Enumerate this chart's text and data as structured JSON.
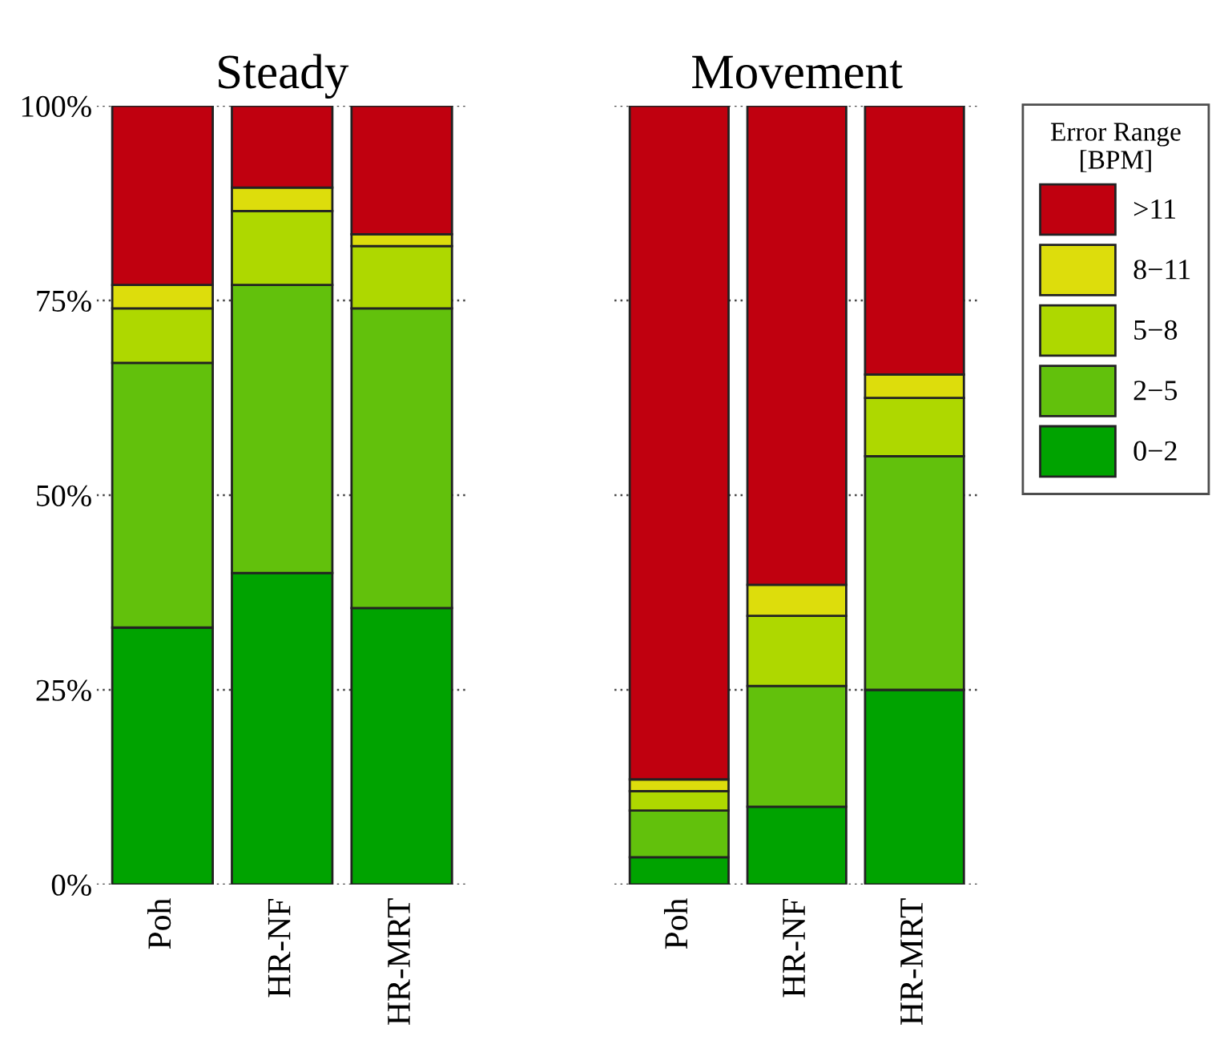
{
  "chart_data": [
    {
      "type": "bar",
      "title": "Steady",
      "stacked": true,
      "categories": [
        "Poh",
        "HR-NF",
        "HR-MRT"
      ],
      "ylim": [
        0,
        100
      ],
      "yticks": [
        {
          "value": 0,
          "label": "0%"
        },
        {
          "value": 25,
          "label": "25%"
        },
        {
          "value": 50,
          "label": "50%"
        },
        {
          "value": 75,
          "label": "75%"
        },
        {
          "value": 100,
          "label": "100%"
        }
      ],
      "grid": "y",
      "series": [
        {
          "color": "#00a300",
          "values": [
            33,
            40,
            35.5
          ]
        },
        {
          "color": "#62c10c",
          "values": [
            34,
            37,
            38.5
          ]
        },
        {
          "color": "#aed800",
          "values": [
            7,
            9.5,
            8
          ]
        },
        {
          "color": "#dddd0c",
          "values": [
            3,
            3,
            1.5
          ]
        },
        {
          "color": "#c0000f",
          "values": [
            23,
            10.5,
            16.5
          ]
        }
      ]
    },
    {
      "type": "bar",
      "title": "Movement",
      "stacked": true,
      "categories": [
        "Poh",
        "HR-NF",
        "HR-MRT"
      ],
      "ylim": [
        0,
        100
      ],
      "yticks": [
        0,
        25,
        50,
        75,
        100
      ],
      "grid": "y",
      "tick_labels": "x",
      "legend": "right",
      "legend_title": "Error Range\n[BPM]",
      "series": [
        {
          "name": "0−2",
          "color": "#00a300",
          "values": [
            3.5,
            10,
            25
          ]
        },
        {
          "name": "2−5",
          "color": "#62c10c",
          "values": [
            6,
            15.5,
            30
          ]
        },
        {
          "name": "5−8",
          "color": "#aed800",
          "values": [
            2.5,
            9,
            7.5
          ]
        },
        {
          "name": "8−11",
          "color": "#dddd0c",
          "values": [
            1.5,
            4,
            3
          ]
        },
        {
          "name": ">11",
          "color": "#c0000f",
          "values": [
            86.5,
            61.5,
            34.5
          ]
        }
      ]
    }
  ]
}
